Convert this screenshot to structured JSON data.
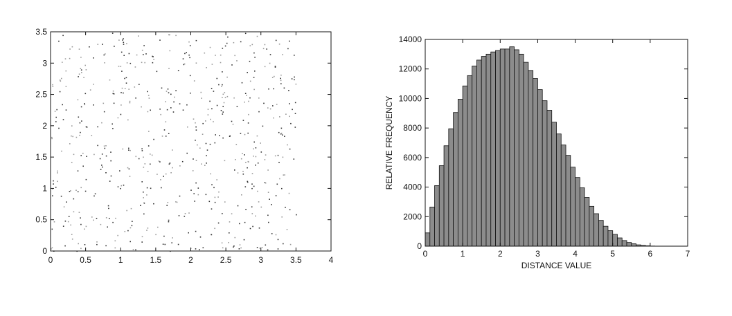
{
  "chart_data": [
    {
      "type": "scatter",
      "title": "",
      "xlabel": "",
      "ylabel": "",
      "xlim": [
        0,
        4
      ],
      "ylim": [
        0,
        3.5
      ],
      "xticks": [
        "0",
        "0.5",
        "1",
        "1.5",
        "2",
        "2.5",
        "3",
        "3.5",
        "4"
      ],
      "yticks": [
        "0",
        "0.5",
        "1",
        "1.5",
        "2",
        "2.5",
        "3",
        "3.5"
      ],
      "grid": false,
      "point_region": {
        "x": [
          0,
          3.5
        ],
        "y": [
          0,
          3.5
        ]
      },
      "point_count": 620,
      "colors": {
        "points": "#333333",
        "points_light": "#999999",
        "axes": "#111111"
      }
    },
    {
      "type": "bar",
      "title": "",
      "xlabel": "DISTANCE VALUE",
      "ylabel": "RELATIVE FREQUENCY",
      "xlim": [
        0,
        7
      ],
      "ylim": [
        0,
        14000
      ],
      "xticks": [
        "0",
        "1",
        "2",
        "3",
        "4",
        "5",
        "6",
        "7"
      ],
      "yticks": [
        "0",
        "2000",
        "4000",
        "6000",
        "8000",
        "10000",
        "12000",
        "14000"
      ],
      "grid": false,
      "bin_width": 0.125,
      "bin_start": 0,
      "values": [
        900,
        2650,
        4100,
        5450,
        6800,
        7950,
        9050,
        9950,
        10850,
        11550,
        12200,
        12600,
        12850,
        13000,
        13150,
        13250,
        13350,
        13350,
        13500,
        13300,
        13000,
        12450,
        11900,
        11350,
        10600,
        9850,
        9200,
        8400,
        7600,
        6850,
        6150,
        5350,
        4650,
        3950,
        3300,
        2700,
        2200,
        1750,
        1350,
        1050,
        800,
        560,
        380,
        250,
        160,
        90,
        50,
        25,
        10
      ],
      "colors": {
        "bar_fill": "#8c8c8c",
        "bar_edge": "#111111",
        "axes": "#111111"
      }
    }
  ]
}
